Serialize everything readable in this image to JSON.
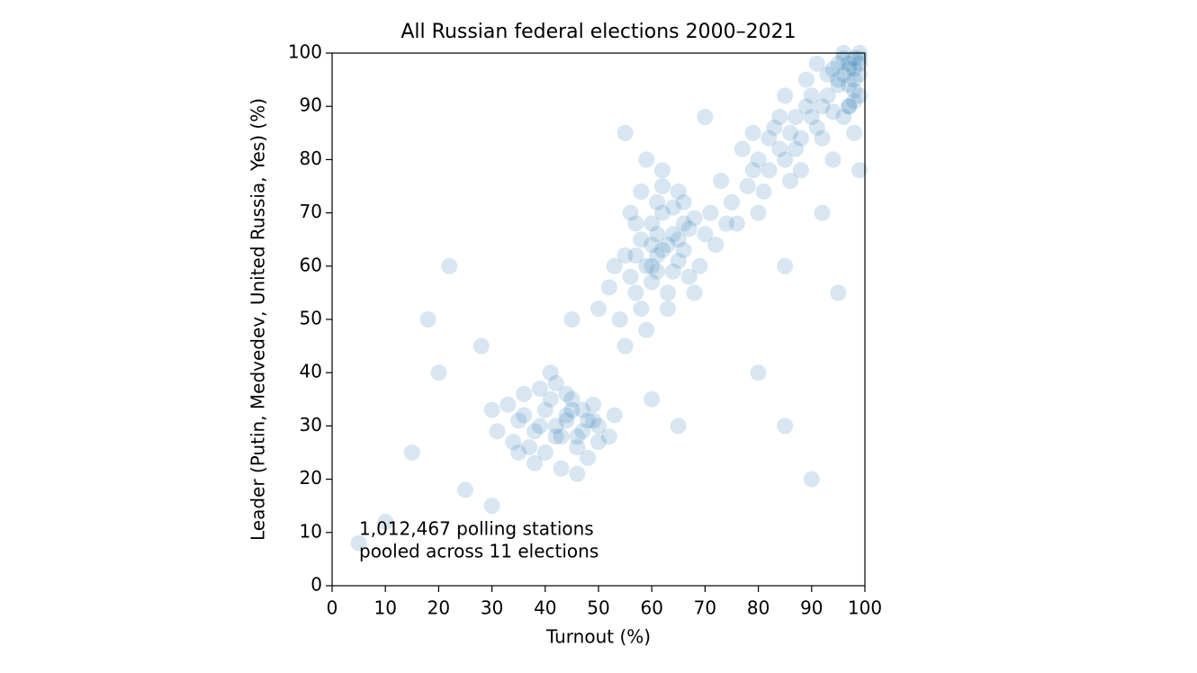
{
  "chart_data": {
    "type": "scatter",
    "title": "All Russian federal elections 2000–2021",
    "xlabel": "Turnout (%)",
    "ylabel": "Leader (Putin, Medvedev, United Russia, Yes) (%)",
    "annotation": [
      "1,012,467 polling stations",
      "pooled across 11 elections"
    ],
    "color": "#1f77b4",
    "xlim": [
      0,
      100
    ],
    "ylim": [
      0,
      100
    ],
    "xticks": [
      0,
      10,
      20,
      30,
      40,
      50,
      60,
      70,
      80,
      90,
      100
    ],
    "yticks": [
      0,
      10,
      20,
      30,
      40,
      50,
      60,
      70,
      80,
      90,
      100
    ],
    "x": [
      35,
      38,
      40,
      42,
      44,
      46,
      48,
      50,
      33,
      36,
      39,
      41,
      43,
      45,
      47,
      49,
      52,
      37,
      40,
      44,
      48,
      31,
      34,
      42,
      46,
      50,
      38,
      43,
      45,
      41,
      39,
      47,
      36,
      44,
      53,
      30,
      42,
      49,
      35,
      46,
      55,
      58,
      60,
      62,
      64,
      66,
      56,
      59,
      61,
      63,
      65,
      67,
      57,
      60,
      62,
      68,
      70,
      54,
      58,
      61,
      64,
      66,
      52,
      56,
      60,
      63,
      65,
      69,
      71,
      59,
      62,
      57,
      55,
      61,
      64,
      67,
      72,
      53,
      58,
      60,
      63,
      66,
      59,
      62,
      57,
      65,
      68,
      74,
      50,
      61,
      75,
      78,
      80,
      82,
      84,
      86,
      88,
      90,
      92,
      94,
      76,
      79,
      81,
      83,
      85,
      87,
      89,
      91,
      93,
      95,
      77,
      80,
      84,
      88,
      92,
      96,
      82,
      86,
      90,
      94,
      98,
      85,
      89,
      93,
      97,
      99,
      73,
      79,
      87,
      91,
      96,
      97,
      98,
      99,
      95,
      97,
      98,
      99,
      96,
      98,
      99,
      97,
      95,
      99,
      98,
      96,
      97,
      99,
      94,
      98,
      10,
      15,
      20,
      25,
      28,
      22,
      65,
      80,
      90,
      95,
      70,
      85,
      5,
      45,
      55,
      85,
      92,
      30,
      18,
      60
    ],
    "values": [
      31,
      29,
      33,
      30,
      32,
      28,
      31,
      27,
      34,
      32,
      30,
      35,
      28,
      33,
      29,
      31,
      28,
      26,
      25,
      36,
      24,
      29,
      27,
      38,
      26,
      30,
      23,
      22,
      35,
      40,
      37,
      33,
      36,
      31,
      32,
      33,
      28,
      34,
      25,
      21,
      62,
      65,
      68,
      70,
      66,
      63,
      58,
      60,
      72,
      64,
      61,
      67,
      55,
      57,
      75,
      69,
      66,
      50,
      52,
      62,
      59,
      72,
      56,
      70,
      64,
      55,
      74,
      60,
      70,
      48,
      78,
      68,
      45,
      66,
      71,
      58,
      64,
      60,
      74,
      60,
      52,
      68,
      80,
      63,
      62,
      65,
      55,
      68,
      52,
      59,
      72,
      75,
      80,
      78,
      82,
      85,
      84,
      88,
      90,
      89,
      68,
      78,
      74,
      86,
      80,
      82,
      90,
      86,
      92,
      94,
      82,
      70,
      88,
      78,
      84,
      88,
      84,
      76,
      92,
      80,
      85,
      92,
      95,
      96,
      90,
      78,
      76,
      85,
      88,
      98,
      96,
      98,
      97,
      99,
      95,
      94,
      99,
      96,
      100,
      93,
      98,
      97,
      98,
      92,
      95,
      99,
      90,
      100,
      97,
      91,
      12,
      25,
      40,
      18,
      45,
      60,
      30,
      40,
      20,
      55,
      88,
      60,
      8,
      50,
      85,
      30,
      70,
      15,
      50,
      35
    ]
  }
}
